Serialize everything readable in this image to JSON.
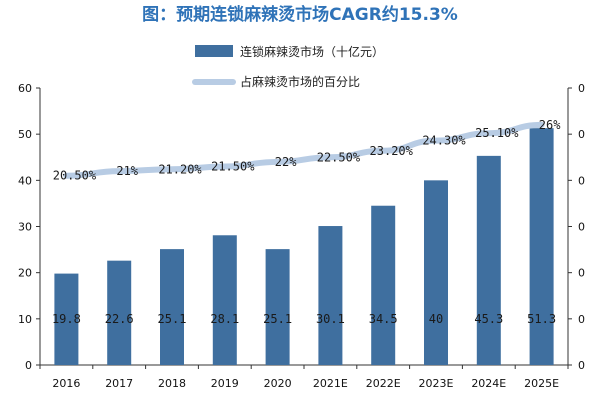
{
  "chart_data": {
    "type": "bar",
    "title": "图：预期连锁麻辣烫市场CAGR约15.3%",
    "categories": [
      "2016",
      "2017",
      "2018",
      "2019",
      "2020",
      "2021E",
      "2022E",
      "2023E",
      "2024E",
      "2025E"
    ],
    "series": [
      {
        "name": "连锁麻辣烫市场（十亿元）",
        "type": "bar",
        "axis": "left",
        "color": "#3f6f9f",
        "values": [
          19.8,
          22.6,
          25.1,
          28.1,
          25.1,
          30.1,
          34.5,
          40,
          45.3,
          51.3
        ],
        "labels": [
          "19.8",
          "22.6",
          "25.1",
          "28.1",
          "25.1",
          "30.1",
          "34.5",
          "40",
          "45.3",
          "51.3"
        ]
      },
      {
        "name": "占麻辣烫市场的百分比",
        "type": "line",
        "axis": "right",
        "color": "#b8cce4",
        "values": [
          20.5,
          21,
          21.2,
          21.5,
          22,
          22.5,
          23.2,
          24.3,
          25.1,
          26
        ],
        "labels": [
          "20.50%",
          "21%",
          "21.20%",
          "21.50%",
          "22%",
          "22.50%",
          "23.20%",
          "24.30%",
          "25.10%",
          "26%"
        ]
      }
    ],
    "y_left": {
      "ylim": [
        0,
        60
      ],
      "ticks": [
        "0",
        "10",
        "20",
        "30",
        "40",
        "50",
        "60"
      ]
    },
    "y_right": {
      "ticks": [
        "0",
        "0",
        "0",
        "0",
        "0",
        "0",
        "0"
      ]
    },
    "grid": false,
    "legend": "top-center"
  },
  "colors": {
    "title": "#2f73b8",
    "bar": "#3f6f9f",
    "line": "#b8cce4",
    "axis": "#333333"
  }
}
